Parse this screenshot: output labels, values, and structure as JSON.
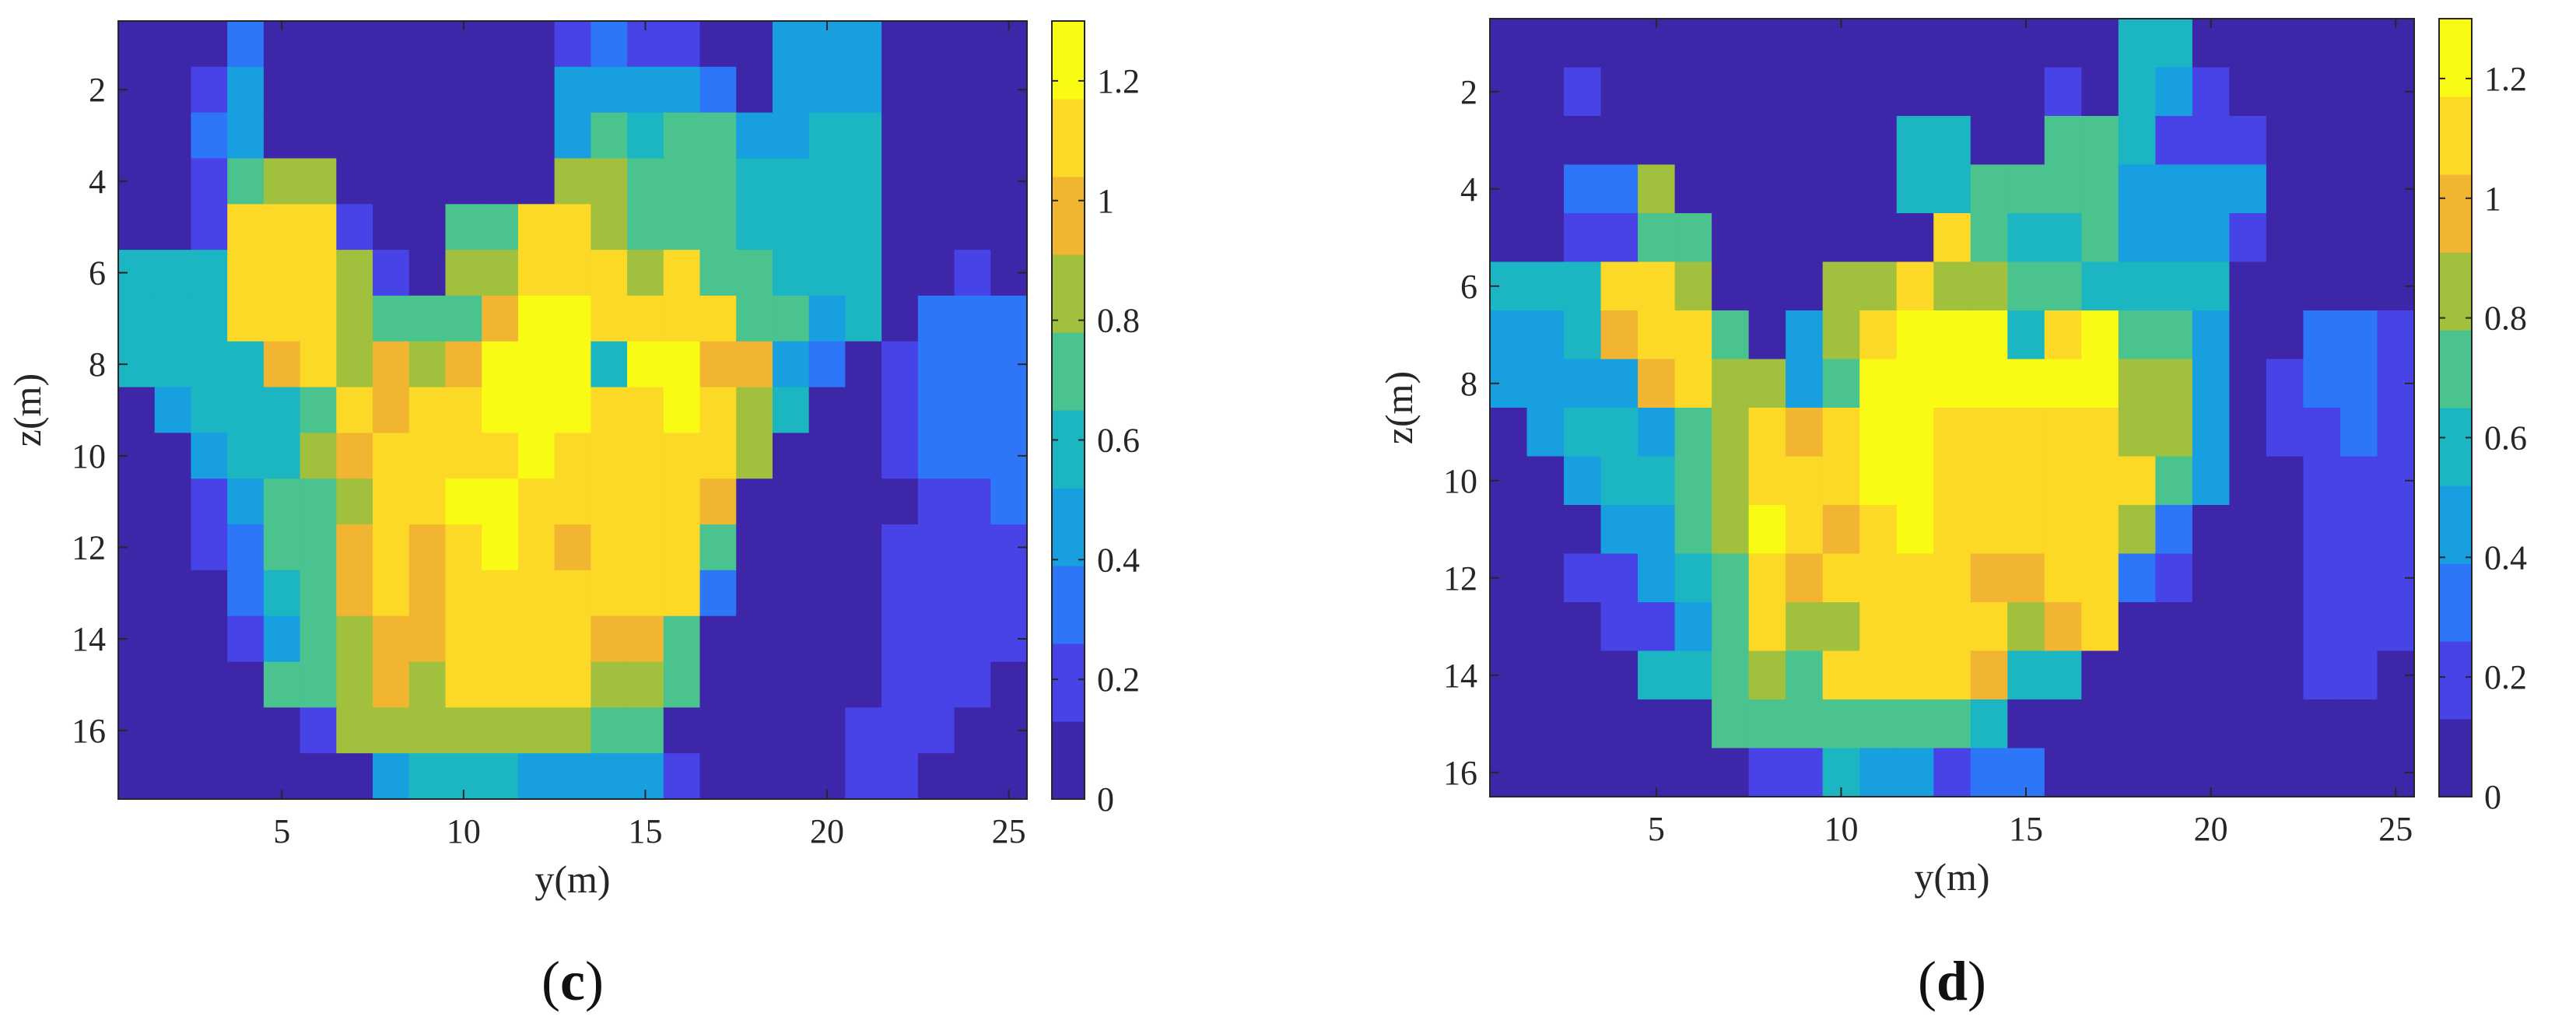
{
  "colormap": [
    "#3e26a8",
    "#4743e7",
    "#2d76f8",
    "#179fe0",
    "#1bb6c2",
    "#4bc38e",
    "#a1c03d",
    "#f2b531",
    "#fbd926",
    "#f9fb14"
  ],
  "chart_data": [
    {
      "type": "heatmap",
      "panel": "c",
      "caption_prefix": "(",
      "caption_letter": "c",
      "caption_suffix": ")",
      "xlabel": "y(m)",
      "ylabel": "z(m)",
      "x_range": [
        0.5,
        25.5
      ],
      "y_range": [
        0.5,
        17.5
      ],
      "y_reversed": true,
      "x_ticks": [
        "5",
        "10",
        "15",
        "20",
        "25"
      ],
      "y_ticks": [
        "2",
        "4",
        "6",
        "8",
        "10",
        "12",
        "14",
        "16"
      ],
      "colorbar_range": [
        0,
        1.3
      ],
      "colorbar_ticks": [
        "0",
        "0.2",
        "0.4",
        "0.6",
        "0.8",
        "1",
        "1.2"
      ],
      "n_cols": 25,
      "n_rows": 17,
      "values": [
        [
          0.05,
          0.05,
          0.05,
          0.3,
          0.05,
          0.05,
          0.05,
          0.05,
          0.05,
          0.05,
          0.05,
          0.05,
          0.25,
          0.35,
          0.25,
          0.25,
          0.1,
          0.05,
          0.5,
          0.5,
          0.5,
          0.05,
          0.05,
          0.05,
          0.05
        ],
        [
          0.05,
          0.05,
          0.25,
          0.4,
          0.05,
          0.05,
          0.05,
          0.05,
          0.05,
          0.05,
          0.05,
          0.05,
          0.4,
          0.5,
          0.4,
          0.4,
          0.3,
          0.05,
          0.5,
          0.5,
          0.4,
          0.05,
          0.05,
          0.05,
          0.05
        ],
        [
          0.05,
          0.05,
          0.3,
          0.5,
          0.05,
          0.05,
          0.05,
          0.05,
          0.05,
          0.05,
          0.05,
          0.05,
          0.5,
          0.65,
          0.55,
          0.65,
          0.65,
          0.5,
          0.5,
          0.55,
          0.55,
          0.05,
          0.05,
          0.05,
          0.05
        ],
        [
          0.05,
          0.05,
          0.25,
          0.7,
          0.85,
          0.85,
          0.05,
          0.05,
          0.05,
          0.05,
          0.05,
          0.05,
          0.85,
          0.8,
          0.75,
          0.7,
          0.65,
          0.55,
          0.55,
          0.55,
          0.55,
          0.05,
          0.05,
          0.05,
          0.05
        ],
        [
          0.05,
          0.05,
          0.25,
          1.05,
          1.05,
          1.05,
          0.15,
          0.05,
          0.05,
          0.65,
          0.65,
          1.05,
          1.05,
          0.8,
          0.7,
          0.7,
          0.65,
          0.55,
          0.55,
          0.55,
          0.55,
          0.05,
          0.05,
          0.05,
          0.05
        ],
        [
          0.6,
          0.6,
          0.6,
          1.05,
          1.15,
          1.05,
          0.8,
          0.2,
          0.05,
          0.8,
          0.85,
          1.1,
          1.15,
          1.05,
          0.9,
          1.05,
          0.7,
          0.7,
          0.55,
          0.55,
          0.55,
          0.05,
          0.05,
          0.15,
          0.05
        ],
        [
          0.6,
          0.6,
          0.6,
          1.05,
          1.05,
          1.05,
          0.8,
          0.7,
          0.65,
          0.65,
          1.0,
          1.2,
          1.2,
          1.15,
          1.1,
          1.15,
          1.15,
          0.65,
          0.65,
          0.5,
          0.55,
          0.05,
          0.3,
          0.35,
          0.3
        ],
        [
          0.55,
          0.6,
          0.6,
          0.6,
          1.0,
          1.05,
          0.9,
          0.95,
          0.9,
          1.0,
          1.25,
          1.25,
          1.2,
          0.55,
          1.2,
          1.2,
          1.0,
          1.0,
          0.45,
          0.35,
          0.05,
          0.15,
          0.3,
          0.35,
          0.3
        ],
        [
          0.05,
          0.5,
          0.6,
          0.6,
          0.6,
          0.75,
          1.05,
          1.0,
          1.05,
          1.1,
          1.25,
          1.25,
          1.2,
          1.15,
          1.15,
          1.2,
          1.1,
          0.85,
          0.6,
          0.05,
          0.05,
          0.2,
          0.3,
          0.35,
          0.3
        ],
        [
          0.05,
          0.05,
          0.5,
          0.6,
          0.6,
          0.8,
          1.0,
          1.05,
          1.1,
          1.15,
          1.15,
          1.2,
          1.15,
          1.1,
          1.15,
          1.1,
          1.1,
          0.8,
          0.05,
          0.05,
          0.05,
          0.2,
          0.3,
          0.3,
          0.3
        ],
        [
          0.05,
          0.05,
          0.15,
          0.5,
          0.65,
          0.65,
          0.9,
          1.05,
          1.1,
          1.2,
          1.2,
          1.15,
          1.1,
          1.1,
          1.05,
          1.1,
          0.95,
          0.05,
          0.05,
          0.05,
          0.05,
          0.05,
          0.2,
          0.2,
          0.3
        ],
        [
          0.05,
          0.05,
          0.2,
          0.3,
          0.65,
          0.7,
          0.95,
          1.05,
          0.95,
          1.15,
          1.2,
          1.15,
          1.0,
          1.05,
          1.05,
          1.05,
          0.75,
          0.05,
          0.05,
          0.05,
          0.05,
          0.2,
          0.2,
          0.2,
          0.2
        ],
        [
          0.05,
          0.05,
          0.05,
          0.35,
          0.55,
          0.7,
          0.95,
          1.05,
          0.95,
          1.15,
          1.15,
          1.15,
          1.1,
          1.05,
          1.1,
          1.1,
          0.35,
          0.05,
          0.05,
          0.05,
          0.05,
          0.25,
          0.25,
          0.25,
          0.15
        ],
        [
          0.05,
          0.05,
          0.05,
          0.25,
          0.4,
          0.7,
          0.85,
          1.0,
          0.95,
          1.15,
          1.15,
          1.1,
          1.05,
          0.95,
          0.95,
          0.75,
          0.05,
          0.05,
          0.05,
          0.05,
          0.05,
          0.25,
          0.25,
          0.25,
          0.15
        ],
        [
          0.05,
          0.05,
          0.05,
          0.05,
          0.7,
          0.7,
          0.8,
          0.95,
          0.8,
          1.1,
          1.1,
          1.05,
          1.1,
          0.85,
          0.8,
          0.7,
          0.05,
          0.05,
          0.05,
          0.05,
          0.05,
          0.2,
          0.2,
          0.2,
          0.05
        ],
        [
          0.05,
          0.05,
          0.05,
          0.05,
          0.05,
          0.2,
          0.8,
          0.8,
          0.8,
          0.85,
          0.85,
          0.8,
          0.8,
          0.7,
          0.65,
          0.05,
          0.05,
          0.05,
          0.05,
          0.05,
          0.15,
          0.15,
          0.15,
          0.05,
          0.05
        ],
        [
          0.05,
          0.05,
          0.05,
          0.05,
          0.05,
          0.05,
          0.05,
          0.5,
          0.6,
          0.6,
          0.55,
          0.45,
          0.4,
          0.45,
          0.45,
          0.2,
          0.05,
          0.05,
          0.05,
          0.05,
          0.15,
          0.15,
          0.05,
          0.05,
          0.05
        ]
      ]
    },
    {
      "type": "heatmap",
      "panel": "d",
      "caption_prefix": "(",
      "caption_letter": "d",
      "caption_suffix": ")",
      "xlabel": "y(m)",
      "ylabel": "z(m)",
      "x_range": [
        0.5,
        25.5
      ],
      "y_range": [
        0.5,
        16.5
      ],
      "y_reversed": true,
      "x_ticks": [
        "5",
        "10",
        "15",
        "20",
        "25"
      ],
      "y_ticks": [
        "2",
        "4",
        "6",
        "8",
        "10",
        "12",
        "14",
        "16"
      ],
      "colorbar_range": [
        0,
        1.3
      ],
      "colorbar_ticks": [
        "0",
        "0.2",
        "0.4",
        "0.6",
        "0.8",
        "1",
        "1.2"
      ],
      "n_cols": 25,
      "n_rows": 16,
      "values": [
        [
          0.05,
          0.05,
          0.05,
          0.05,
          0.05,
          0.05,
          0.05,
          0.05,
          0.05,
          0.05,
          0.05,
          0.05,
          0.05,
          0.05,
          0.05,
          0.05,
          0.05,
          0.55,
          0.55,
          0.05,
          0.05,
          0.05,
          0.05,
          0.05,
          0.05
        ],
        [
          0.05,
          0.05,
          0.2,
          0.05,
          0.05,
          0.05,
          0.05,
          0.05,
          0.05,
          0.05,
          0.05,
          0.05,
          0.05,
          0.05,
          0.05,
          0.15,
          0.1,
          0.55,
          0.45,
          0.15,
          0.05,
          0.05,
          0.05,
          0.05,
          0.05
        ],
        [
          0.05,
          0.05,
          0.05,
          0.05,
          0.05,
          0.05,
          0.05,
          0.05,
          0.05,
          0.05,
          0.05,
          0.55,
          0.55,
          0.05,
          0.05,
          0.65,
          0.65,
          0.55,
          0.25,
          0.25,
          0.15,
          0.05,
          0.05,
          0.05,
          0.05
        ],
        [
          0.05,
          0.05,
          0.3,
          0.3,
          0.8,
          0.05,
          0.05,
          0.05,
          0.05,
          0.05,
          0.05,
          0.55,
          0.55,
          0.75,
          0.65,
          0.65,
          0.65,
          0.45,
          0.45,
          0.5,
          0.5,
          0.05,
          0.05,
          0.05,
          0.05
        ],
        [
          0.05,
          0.05,
          0.25,
          0.25,
          0.75,
          0.75,
          0.05,
          0.05,
          0.05,
          0.05,
          0.05,
          0.05,
          1.05,
          0.75,
          0.6,
          0.6,
          0.65,
          0.45,
          0.45,
          0.45,
          0.25,
          0.05,
          0.05,
          0.05,
          0.05
        ],
        [
          0.55,
          0.55,
          0.55,
          1.05,
          1.05,
          0.9,
          0.05,
          0.05,
          0.05,
          0.8,
          0.8,
          1.05,
          0.85,
          0.8,
          0.65,
          0.65,
          0.6,
          0.55,
          0.55,
          0.55,
          0.05,
          0.05,
          0.05,
          0.05,
          0.05
        ],
        [
          0.5,
          0.5,
          0.55,
          1.0,
          1.05,
          1.05,
          0.75,
          0.05,
          0.5,
          0.8,
          1.1,
          1.2,
          1.2,
          1.2,
          0.6,
          1.15,
          1.2,
          0.7,
          0.75,
          0.5,
          0.05,
          0.05,
          0.3,
          0.35,
          0.25
        ],
        [
          0.5,
          0.5,
          0.5,
          0.5,
          1.0,
          1.05,
          0.8,
          0.9,
          0.5,
          0.75,
          1.25,
          1.25,
          1.2,
          1.2,
          1.2,
          1.2,
          1.2,
          0.9,
          0.9,
          0.5,
          0.05,
          0.15,
          0.3,
          0.35,
          0.25
        ],
        [
          0.05,
          0.45,
          0.55,
          0.55,
          0.45,
          0.7,
          0.8,
          1.05,
          1.0,
          1.1,
          1.25,
          1.25,
          1.15,
          1.15,
          1.15,
          1.15,
          1.15,
          0.9,
          0.9,
          0.45,
          0.05,
          0.15,
          0.25,
          0.3,
          0.25
        ],
        [
          0.05,
          0.05,
          0.5,
          0.55,
          0.55,
          0.7,
          0.8,
          1.05,
          1.1,
          1.05,
          1.2,
          1.2,
          1.15,
          1.1,
          1.15,
          1.1,
          1.1,
          1.1,
          0.75,
          0.45,
          0.05,
          0.05,
          0.2,
          0.25,
          0.25
        ],
        [
          0.05,
          0.05,
          0.05,
          0.4,
          0.5,
          0.7,
          0.8,
          1.2,
          1.1,
          0.95,
          1.1,
          1.2,
          1.1,
          1.15,
          1.1,
          1.1,
          1.05,
          0.9,
          0.35,
          0.05,
          0.05,
          0.05,
          0.2,
          0.25,
          0.25
        ],
        [
          0.05,
          0.05,
          0.15,
          0.15,
          0.5,
          0.6,
          0.75,
          1.05,
          1.0,
          1.1,
          1.15,
          1.15,
          1.05,
          1.0,
          0.95,
          1.05,
          1.05,
          0.3,
          0.2,
          0.05,
          0.05,
          0.05,
          0.15,
          0.2,
          0.2
        ],
        [
          0.05,
          0.05,
          0.05,
          0.15,
          0.15,
          0.5,
          0.75,
          1.05,
          0.9,
          0.9,
          1.15,
          1.1,
          1.05,
          1.05,
          0.9,
          1.0,
          1.05,
          0.05,
          0.05,
          0.05,
          0.05,
          0.05,
          0.15,
          0.2,
          0.2
        ],
        [
          0.05,
          0.05,
          0.05,
          0.05,
          0.6,
          0.6,
          0.75,
          0.9,
          0.75,
          1.1,
          1.1,
          1.05,
          1.05,
          0.95,
          0.6,
          0.6,
          0.05,
          0.05,
          0.05,
          0.05,
          0.1,
          0.1,
          0.15,
          0.15,
          0.05
        ],
        [
          0.05,
          0.05,
          0.05,
          0.05,
          0.05,
          0.05,
          0.7,
          0.7,
          0.7,
          0.7,
          0.7,
          0.7,
          0.7,
          0.55,
          0.1,
          0.05,
          0.05,
          0.05,
          0.05,
          0.05,
          0.1,
          0.1,
          0.05,
          0.05,
          0.05
        ],
        [
          0.05,
          0.05,
          0.05,
          0.05,
          0.05,
          0.05,
          0.05,
          0.25,
          0.25,
          0.55,
          0.4,
          0.4,
          0.25,
          0.35,
          0.35,
          0.05,
          0.05,
          0.05,
          0.05,
          0.05,
          0.05,
          0.05,
          0.05,
          0.05,
          0.05
        ]
      ]
    }
  ]
}
